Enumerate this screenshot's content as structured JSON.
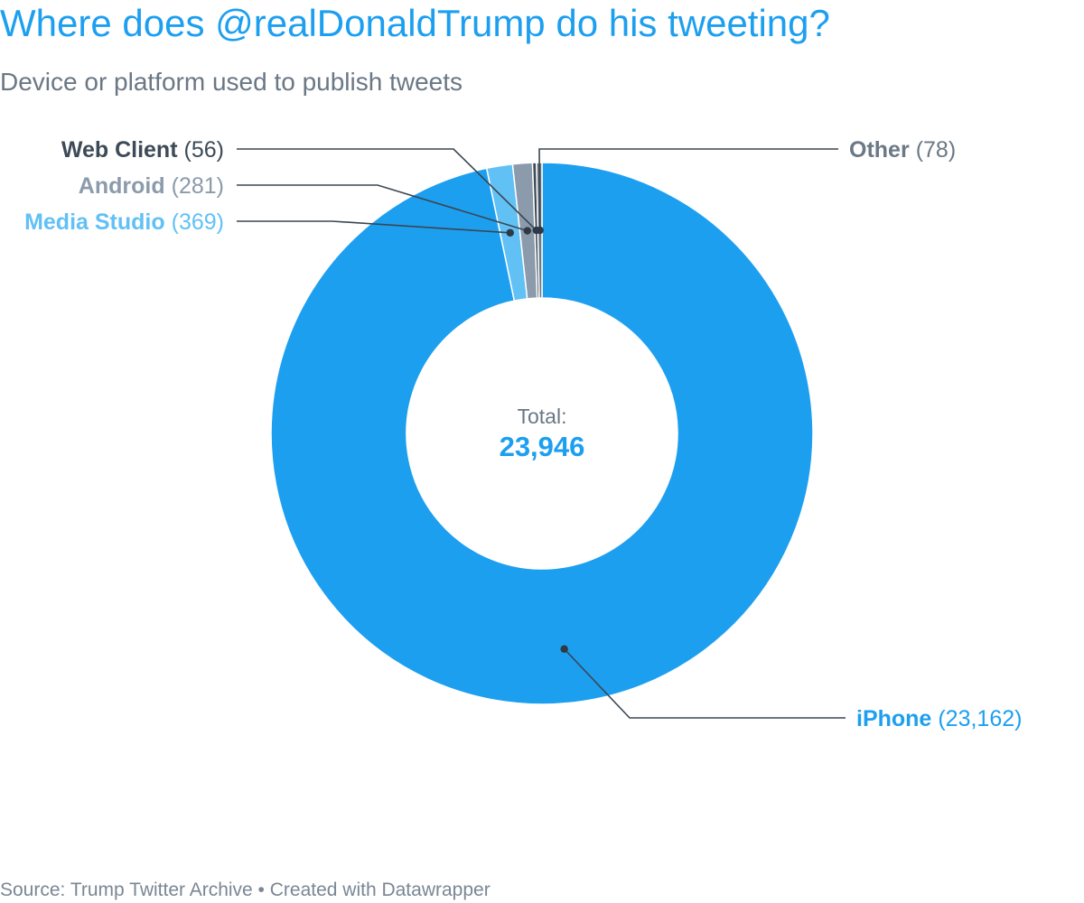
{
  "header": {
    "title": "Where does @realDonaldTrump do his tweeting?",
    "subtitle": "Device or platform used to publish tweets"
  },
  "footer": {
    "text": "Source: Trump Twitter Archive • Created with Datawrapper"
  },
  "chart_data": {
    "type": "pie",
    "variant": "donut",
    "title": "Where does @realDonaldTrump do his tweeting?",
    "subtitle": "Device or platform used to publish tweets",
    "center_label": "Total:",
    "center_value": "23,946",
    "slices": [
      {
        "name": "iPhone",
        "value": 23162,
        "display": "(23,162)",
        "color": "#1d9ff0"
      },
      {
        "name": "Media Studio",
        "value": 369,
        "display": "(369)",
        "color": "#61c1f5"
      },
      {
        "name": "Android",
        "value": 281,
        "display": "(281)",
        "color": "#8b9bab"
      },
      {
        "name": "Web Client",
        "value": 56,
        "display": "(56)",
        "color": "#3d4a57"
      },
      {
        "name": "Other",
        "value": 78,
        "display": "(78)",
        "color": "#6b7885"
      }
    ],
    "label_colors": {
      "iPhone": "#1d9ff0",
      "Media Studio": "#61c1f5",
      "Android": "#8b9bab",
      "Web Client": "#3d4a57",
      "Other": "#6b7885"
    },
    "grid": false,
    "legend": "callout labels"
  }
}
